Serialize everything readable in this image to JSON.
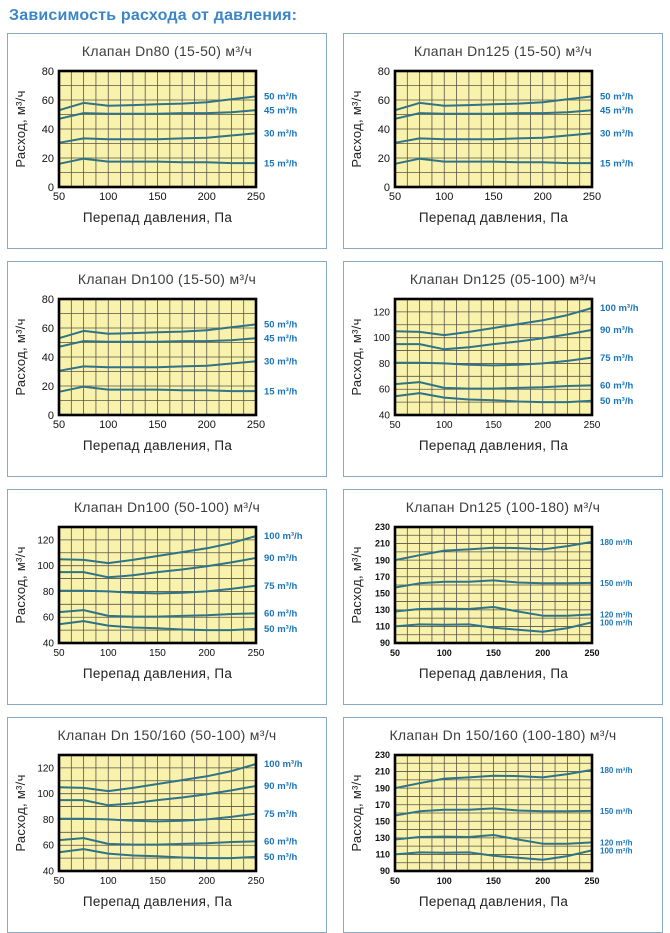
{
  "page_title": "Зависимость расхода от давления:",
  "colors": {
    "heading": "#3a86c8",
    "panel_border": "#8aa9c4",
    "title_text": "#3d3d3d",
    "plot_bg": "#f8f2ac",
    "grid": "#57544a",
    "plot_border": "#000000",
    "line": "#2f7386",
    "legend_text": "#1b75bb",
    "tick_text": "#111111",
    "axis_label_text": "#222222"
  },
  "chart_data": [
    {
      "type": "line",
      "title": "Клапан Dn80 (15-50) м³/ч",
      "xlabel": "Перепад давления, Па",
      "ylabel": "Расход, м³/ч",
      "xlim": [
        50,
        250
      ],
      "ylim": [
        0,
        80
      ],
      "xticks": [
        50,
        100,
        150,
        200,
        250
      ],
      "yticks": [
        0,
        20,
        40,
        60,
        80
      ],
      "x_minor_step": 12.5,
      "y_minor_step": 10,
      "grid": "on",
      "legend_position": "right",
      "tick_font": 11,
      "tick_bold": false,
      "legend_font": 9.5,
      "x": [
        50,
        75,
        100,
        125,
        150,
        175,
        200,
        225,
        250
      ],
      "series": [
        {
          "label": "50 m³/h",
          "values": [
            53,
            58,
            56,
            56.5,
            57,
            57.5,
            58.5,
            60.5,
            62.5
          ]
        },
        {
          "label": "45 m³/h",
          "values": [
            47,
            51,
            50.5,
            50.5,
            50.5,
            51,
            51,
            51.5,
            53
          ]
        },
        {
          "label": "30 m³/h",
          "values": [
            30.5,
            33.5,
            33,
            33,
            33,
            33.5,
            34,
            35.5,
            37
          ]
        },
        {
          "label": "15 m³/h",
          "values": [
            16,
            19.5,
            17.5,
            17.5,
            17.5,
            17,
            17,
            16.5,
            16.5
          ]
        }
      ]
    },
    {
      "type": "line",
      "title": "Клапан Dn125 (15-50) м³/ч",
      "xlabel": "Перепад давления, Па",
      "ylabel": "Расход, м³/ч",
      "xlim": [
        50,
        250
      ],
      "ylim": [
        0,
        80
      ],
      "xticks": [
        50,
        100,
        150,
        200,
        250
      ],
      "yticks": [
        0,
        20,
        40,
        60,
        80
      ],
      "x_minor_step": 12.5,
      "y_minor_step": 10,
      "grid": "on",
      "legend_position": "right",
      "tick_font": 11,
      "tick_bold": false,
      "legend_font": 9.5,
      "x": [
        50,
        75,
        100,
        125,
        150,
        175,
        200,
        225,
        250
      ],
      "series": [
        {
          "label": "50 m³/h",
          "values": [
            53,
            58,
            56,
            56.5,
            57,
            57.5,
            58.5,
            60.5,
            62.5
          ]
        },
        {
          "label": "45 m³/h",
          "values": [
            47,
            51,
            50.5,
            50.5,
            50.5,
            51,
            51,
            51.5,
            53
          ]
        },
        {
          "label": "30 m³/h",
          "values": [
            30.5,
            33.5,
            33,
            33,
            33,
            33.5,
            34,
            35.5,
            37
          ]
        },
        {
          "label": "15 m³/h",
          "values": [
            16,
            19.5,
            17.5,
            17.5,
            17.5,
            17,
            17,
            16.5,
            16.5
          ]
        }
      ]
    },
    {
      "type": "line",
      "title": "Клапан Dn100 (15-50) м³/ч",
      "xlabel": "Перепад давления, Па",
      "ylabel": "Расход, м³/ч",
      "xlim": [
        50,
        250
      ],
      "ylim": [
        0,
        80
      ],
      "xticks": [
        50,
        100,
        150,
        200,
        250
      ],
      "yticks": [
        0,
        20,
        40,
        60,
        80
      ],
      "x_minor_step": 12.5,
      "y_minor_step": 10,
      "grid": "on",
      "legend_position": "right",
      "tick_font": 11,
      "tick_bold": false,
      "legend_font": 9.5,
      "x": [
        50,
        75,
        100,
        125,
        150,
        175,
        200,
        225,
        250
      ],
      "series": [
        {
          "label": "50 m³/h",
          "values": [
            53,
            58,
            56,
            56.5,
            57,
            57.5,
            58.5,
            60.5,
            62.5
          ]
        },
        {
          "label": "45 m³/h",
          "values": [
            47,
            51,
            50.5,
            50.5,
            50.5,
            51,
            51,
            51.5,
            53
          ]
        },
        {
          "label": "30 m³/h",
          "values": [
            30.5,
            33.5,
            33,
            33,
            33,
            33.5,
            34,
            35.5,
            37
          ]
        },
        {
          "label": "15 m³/h",
          "values": [
            16,
            19.5,
            17.5,
            17.5,
            17.5,
            17,
            17,
            16.5,
            16.5
          ]
        }
      ]
    },
    {
      "type": "line",
      "title": "Клапан Dn125 (05-100) м³/ч",
      "xlabel": "Перепад давления, Па",
      "ylabel": "Расход, м³/ч",
      "xlim": [
        50,
        250
      ],
      "ylim": [
        40,
        130
      ],
      "xticks": [
        50,
        100,
        150,
        200,
        250
      ],
      "yticks": [
        40,
        60,
        80,
        100,
        120
      ],
      "x_minor_step": 12.5,
      "y_minor_step": 10,
      "grid": "on",
      "legend_position": "right",
      "tick_font": 10,
      "tick_bold": false,
      "legend_font": 9.5,
      "x": [
        50,
        75,
        100,
        125,
        150,
        175,
        200,
        225,
        250
      ],
      "series": [
        {
          "label": "100 m³/h",
          "values": [
            105,
            104.5,
            102,
            104.5,
            107.5,
            110.5,
            113.5,
            117.5,
            123
          ]
        },
        {
          "label": "90 m³/h",
          "values": [
            95,
            95,
            91,
            92.5,
            95,
            97,
            99.5,
            102.5,
            106
          ]
        },
        {
          "label": "75 m³/h",
          "values": [
            80.5,
            80.5,
            80,
            79,
            78.5,
            79,
            80,
            82,
            84.5
          ]
        },
        {
          "label": "60 m³/h",
          "values": [
            64,
            65.5,
            61,
            60.5,
            60.5,
            61,
            61.5,
            62.5,
            63
          ]
        },
        {
          "label": "50 m³/h",
          "values": [
            54.5,
            57,
            53.5,
            52,
            51.5,
            50.5,
            50,
            50,
            51
          ]
        }
      ]
    },
    {
      "type": "line",
      "title": "Клапан Dn100 (50-100) м³/ч",
      "xlabel": "Перепад давления, Па",
      "ylabel": "Расход, м³/ч",
      "xlim": [
        50,
        250
      ],
      "ylim": [
        40,
        130
      ],
      "xticks": [
        50,
        100,
        150,
        200,
        250
      ],
      "yticks": [
        40,
        60,
        80,
        100,
        120
      ],
      "x_minor_step": 12.5,
      "y_minor_step": 10,
      "grid": "on",
      "legend_position": "right",
      "tick_font": 10,
      "tick_bold": false,
      "legend_font": 9.5,
      "x": [
        50,
        75,
        100,
        125,
        150,
        175,
        200,
        225,
        250
      ],
      "series": [
        {
          "label": "100 m³/h",
          "values": [
            105,
            104.5,
            102,
            104.5,
            107.5,
            110.5,
            113.5,
            117.5,
            123
          ]
        },
        {
          "label": "90 m³/h",
          "values": [
            95,
            95,
            91,
            92.5,
            95,
            97,
            99.5,
            102.5,
            106
          ]
        },
        {
          "label": "75 m³/h",
          "values": [
            80.5,
            80.5,
            80,
            79,
            78.5,
            79,
            80,
            82,
            84.5
          ]
        },
        {
          "label": "60 m³/h",
          "values": [
            64,
            65.5,
            61,
            60.5,
            60.5,
            61,
            61.5,
            62.5,
            63
          ]
        },
        {
          "label": "50 m³/h",
          "values": [
            54.5,
            57,
            53.5,
            52,
            51.5,
            50.5,
            50,
            50,
            51
          ]
        }
      ]
    },
    {
      "type": "line",
      "title": "Клапан Dn125 (100-180) м³/ч",
      "xlabel": "Перепад давления, Па",
      "ylabel": "Расход, м³/ч",
      "xlim": [
        50,
        250
      ],
      "ylim": [
        90,
        230
      ],
      "xticks": [
        50,
        100,
        150,
        200,
        250
      ],
      "yticks": [
        90,
        110,
        130,
        150,
        170,
        190,
        210,
        230
      ],
      "x_minor_step": 12.5,
      "y_minor_step": 10,
      "grid": "on",
      "legend_position": "right",
      "tick_font": 9,
      "tick_bold": true,
      "legend_font": 8,
      "x": [
        50,
        75,
        100,
        125,
        150,
        175,
        200,
        225,
        250
      ],
      "series": [
        {
          "label": "180 m³/h",
          "values": [
            190,
            196,
            201.5,
            203,
            205,
            204.5,
            203,
            207,
            212
          ]
        },
        {
          "label": "150 m³/h",
          "values": [
            157,
            162,
            164,
            164,
            165.5,
            163,
            162,
            162,
            162.5
          ]
        },
        {
          "label": "120 m³/h",
          "values": [
            128,
            131,
            131.5,
            131,
            133.5,
            128,
            123,
            123,
            124.5
          ]
        },
        {
          "label": "100 m³/h",
          "values": [
            110,
            112.5,
            112,
            112.5,
            108.5,
            106,
            103.5,
            108,
            115
          ]
        }
      ]
    },
    {
      "type": "line",
      "title": "Клапан Dn 150/160 (50-100) м³/ч",
      "xlabel": "Перепад давления, Па",
      "ylabel": "Расход, м³/ч",
      "xlim": [
        50,
        250
      ],
      "ylim": [
        40,
        130
      ],
      "xticks": [
        50,
        100,
        150,
        200,
        250
      ],
      "yticks": [
        40,
        60,
        80,
        100,
        120
      ],
      "x_minor_step": 12.5,
      "y_minor_step": 10,
      "grid": "on",
      "legend_position": "right",
      "tick_font": 10,
      "tick_bold": false,
      "legend_font": 9.5,
      "x": [
        50,
        75,
        100,
        125,
        150,
        175,
        200,
        225,
        250
      ],
      "series": [
        {
          "label": "100 m³/h",
          "values": [
            105,
            104.5,
            102,
            104.5,
            107.5,
            110.5,
            113.5,
            117.5,
            123
          ]
        },
        {
          "label": "90 m³/h",
          "values": [
            95,
            95,
            91,
            92.5,
            95,
            97,
            99.5,
            102.5,
            106
          ]
        },
        {
          "label": "75 m³/h",
          "values": [
            80.5,
            80.5,
            80,
            79,
            78.5,
            79,
            80,
            82,
            84.5
          ]
        },
        {
          "label": "60 m³/h",
          "values": [
            64,
            65.5,
            61,
            60.5,
            60.5,
            61,
            61.5,
            62.5,
            63
          ]
        },
        {
          "label": "50 m³/h",
          "values": [
            54.5,
            57,
            53.5,
            52,
            51.5,
            50.5,
            50,
            50,
            51
          ]
        }
      ]
    },
    {
      "type": "line",
      "title": "Клапан Dn 150/160 (100-180) м³/ч",
      "xlabel": "Перепад давления, Па",
      "ylabel": "Расход, м³/ч",
      "xlim": [
        50,
        250
      ],
      "ylim": [
        90,
        230
      ],
      "xticks": [
        50,
        100,
        150,
        200,
        250
      ],
      "yticks": [
        90,
        110,
        130,
        150,
        170,
        190,
        210,
        230
      ],
      "x_minor_step": 12.5,
      "y_minor_step": 10,
      "grid": "on",
      "legend_position": "right",
      "tick_font": 9,
      "tick_bold": true,
      "legend_font": 8,
      "x": [
        50,
        75,
        100,
        125,
        150,
        175,
        200,
        225,
        250
      ],
      "series": [
        {
          "label": "180 m³/h",
          "values": [
            190,
            196,
            201.5,
            203,
            205,
            204.5,
            203,
            207,
            212
          ]
        },
        {
          "label": "150 m³/h",
          "values": [
            157,
            162,
            164,
            164,
            165.5,
            163,
            162,
            162,
            162.5
          ]
        },
        {
          "label": "120 m³/h",
          "values": [
            128,
            131,
            131.5,
            131,
            133.5,
            128,
            123,
            123,
            124.5
          ]
        },
        {
          "label": "100 m³/h",
          "values": [
            110,
            112.5,
            112,
            112.5,
            108.5,
            106,
            103.5,
            108,
            115
          ]
        }
      ]
    }
  ]
}
